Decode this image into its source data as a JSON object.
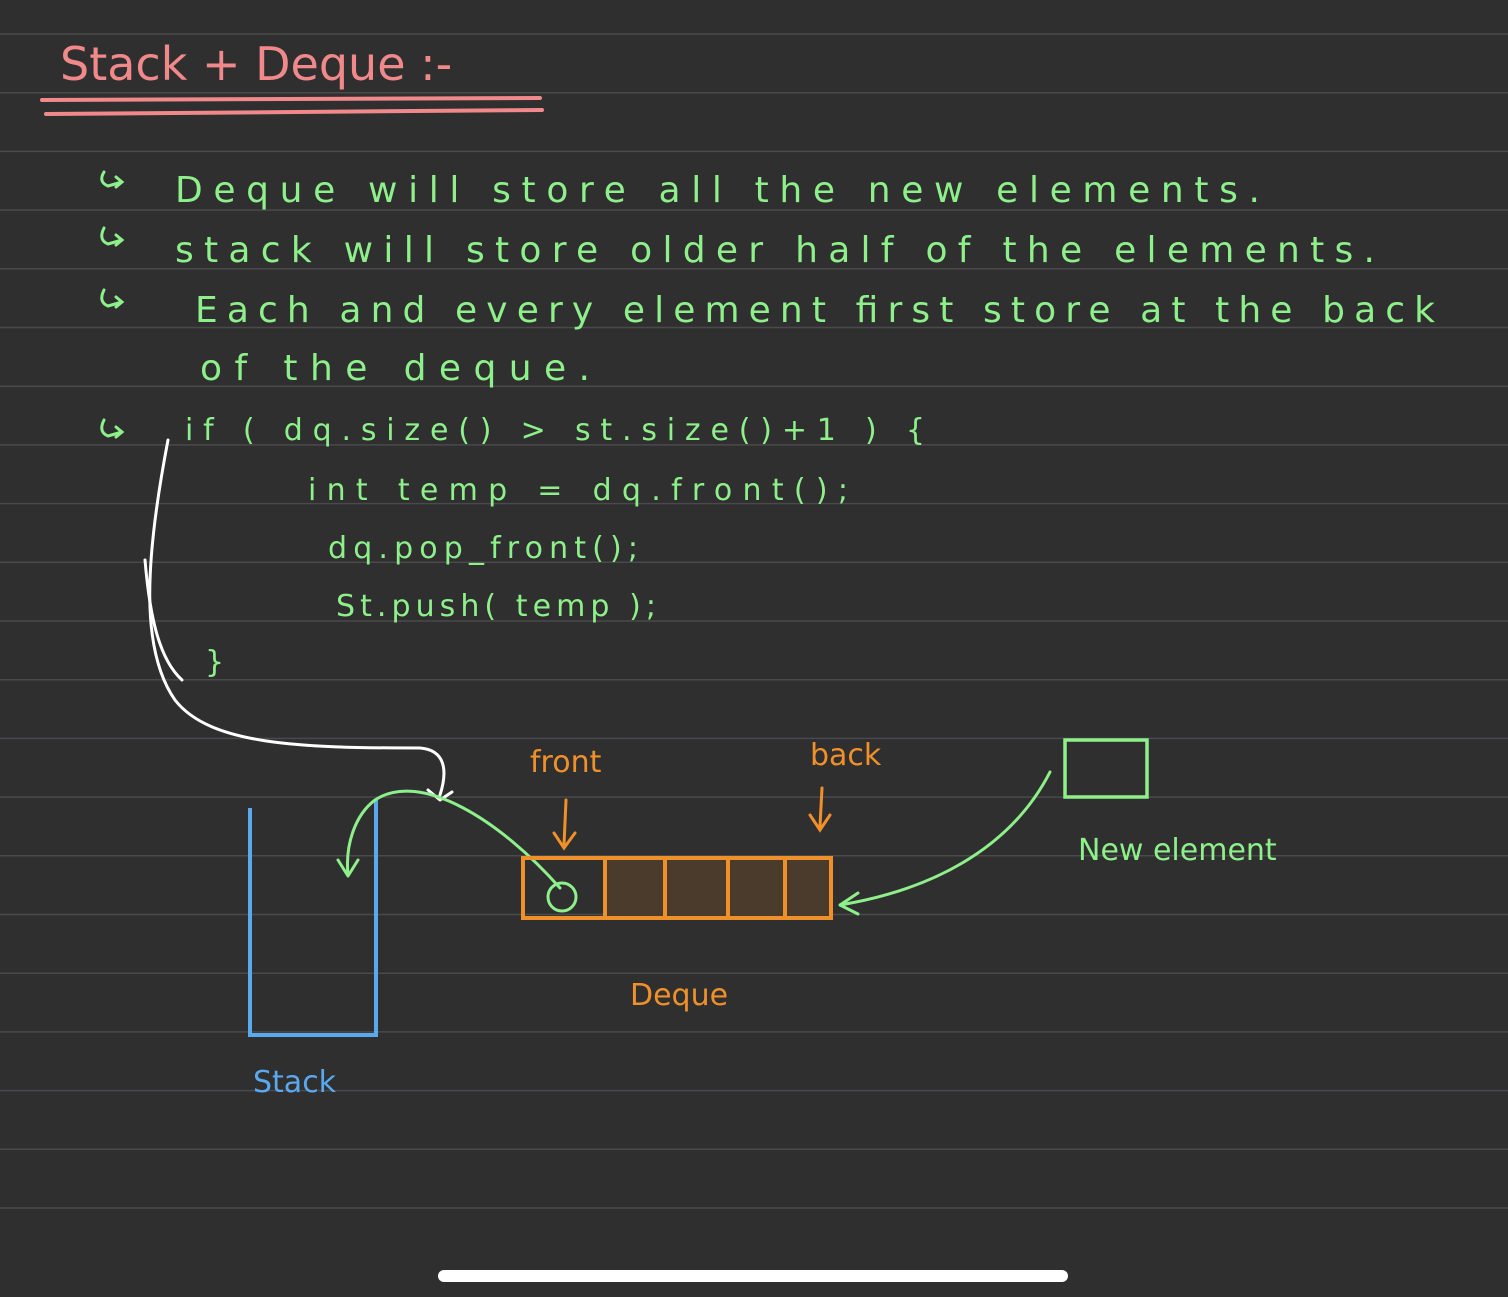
{
  "title": "Stack + Deque :-",
  "notes": {
    "line1": "Deque will store all the new elements.",
    "line2": "stack will store older half of the elements.",
    "line3": "Each and every element first store at the back",
    "line4": "of the deque.",
    "code1": "if ( dq.size() > st.size()+1 ) {",
    "code2": "int temp = dq.front();",
    "code3": "dq.pop_front();",
    "code4": "St.push( temp );",
    "code5": "}"
  },
  "diagram": {
    "front_label": "front",
    "back_label": "back",
    "deque_label": "Deque",
    "stack_label": "Stack",
    "new_element_label": "New element",
    "deque_cells": 5
  },
  "colors": {
    "background": "#2f2f30",
    "title": "#f1898a",
    "notes": "#8ef08a",
    "deque": "#f0902a",
    "stack": "#5aa9ee",
    "arrow": "#ffffff"
  },
  "icons": {
    "bullet": "hooked-arrow-bullet-icon"
  }
}
